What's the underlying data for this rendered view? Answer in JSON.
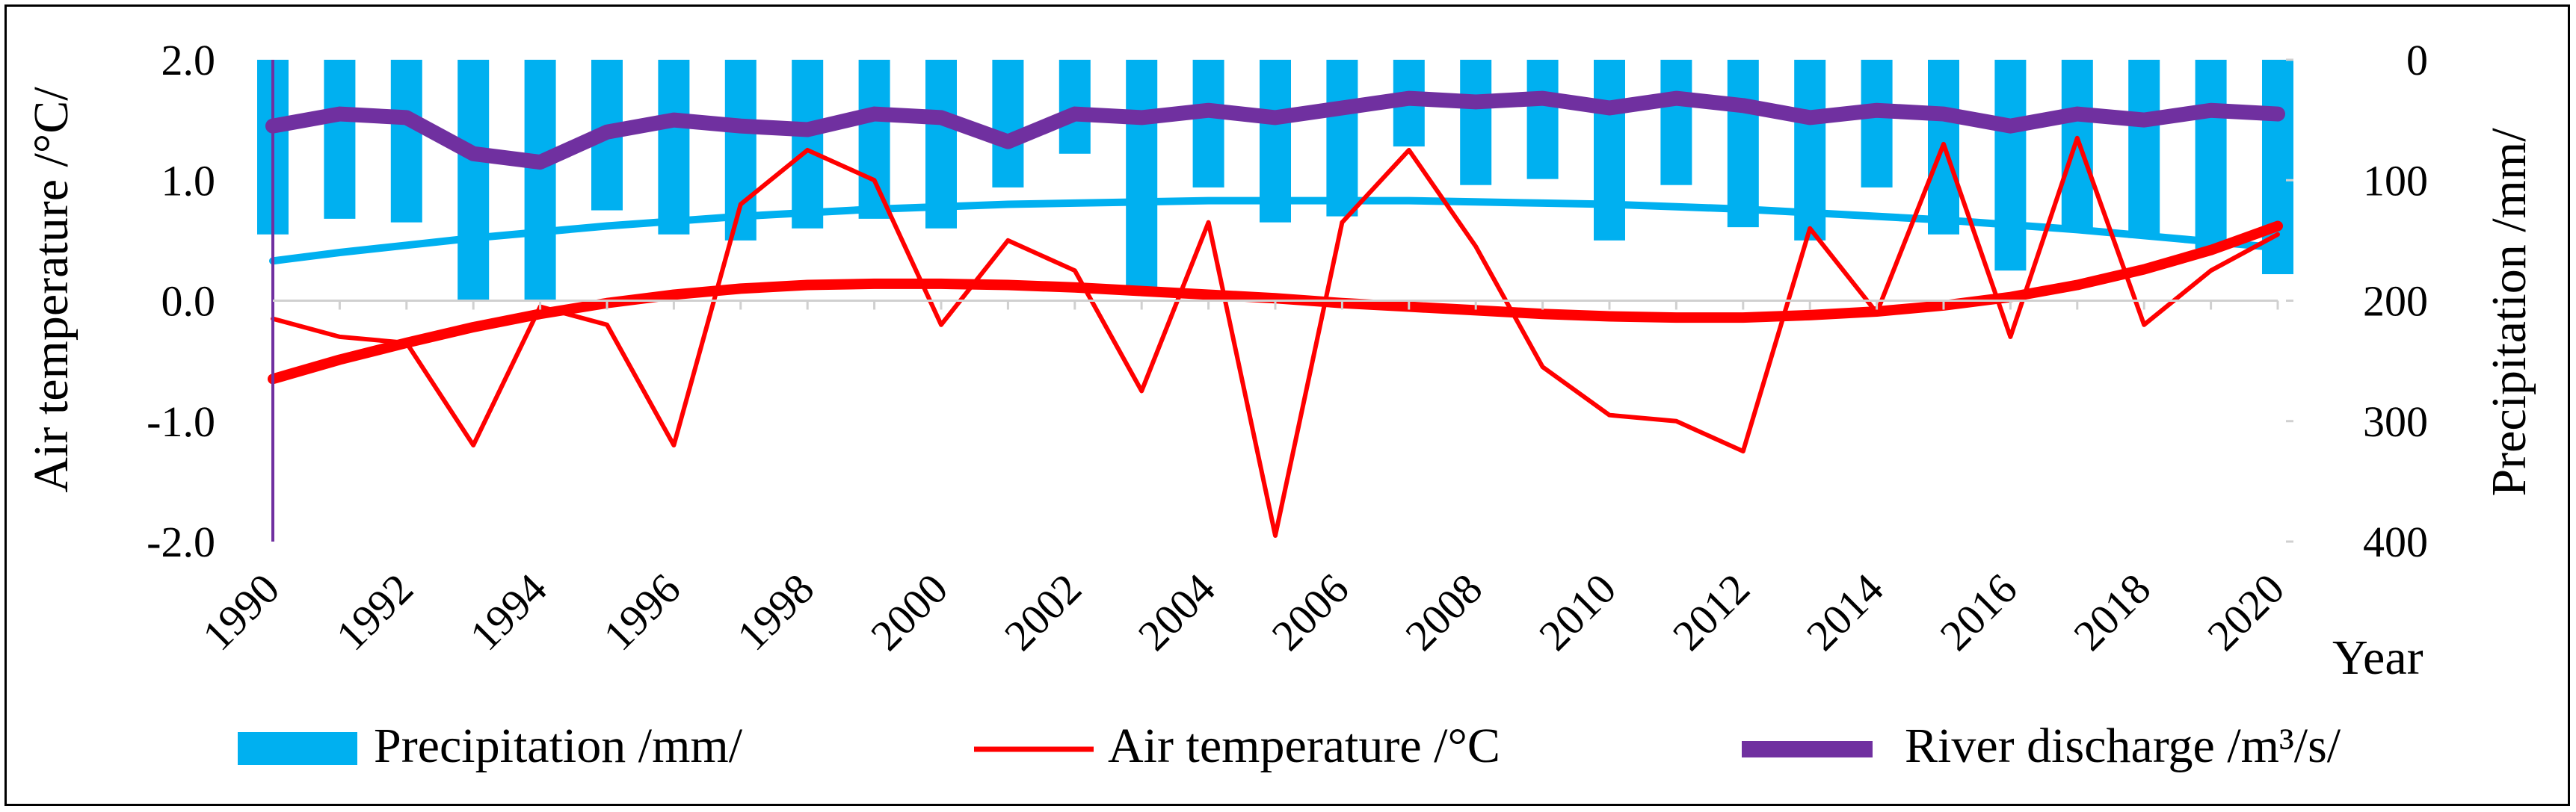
{
  "chart_data": {
    "type": "bar+line",
    "title": "",
    "x_label": "Year",
    "y_left_label": "Air temperature /°C/",
    "y_right_label": "Precipitation /mm/",
    "y_left_ticks": [
      "2.0",
      "1.0",
      "0.0",
      "-1.0",
      "-2.0"
    ],
    "y_left_range": [
      -2.0,
      2.0
    ],
    "y_right_ticks": [
      "0",
      "100",
      "200",
      "300",
      "400"
    ],
    "y_right_range": [
      0,
      400
    ],
    "y_right_inverted": true,
    "x_tick_labels": [
      "1990",
      "1992",
      "1994",
      "1996",
      "1998",
      "2000",
      "2002",
      "2004",
      "2006",
      "2008",
      "2010",
      "2012",
      "2014",
      "2016",
      "2018",
      "2020"
    ],
    "years": [
      1990,
      1991,
      1992,
      1993,
      1994,
      1995,
      1996,
      1997,
      1998,
      1999,
      2000,
      2001,
      2002,
      2003,
      2004,
      2005,
      2006,
      2007,
      2008,
      2009,
      2010,
      2011,
      2012,
      2013,
      2014,
      2015,
      2016,
      2017,
      2018,
      2019,
      2020
    ],
    "series": [
      {
        "name": "Precipitation /mm/",
        "kind": "bar",
        "axis": "right",
        "color": "#00b0f0",
        "values": [
          145,
          132,
          135,
          200,
          200,
          125,
          145,
          150,
          140,
          132,
          140,
          106,
          78,
          190,
          106,
          135,
          130,
          72,
          104,
          99,
          150,
          104,
          139,
          150,
          106,
          145,
          175,
          140,
          148,
          157,
          178
        ]
      },
      {
        "name": "Air temperature /°C",
        "kind": "line",
        "axis": "left",
        "color": "#ff0000",
        "values": [
          -0.15,
          -0.3,
          -0.35,
          -1.2,
          -0.05,
          -0.2,
          -1.2,
          0.8,
          1.25,
          1.0,
          -0.2,
          0.5,
          0.25,
          -0.75,
          0.65,
          -1.95,
          0.65,
          1.25,
          0.45,
          -0.55,
          -0.95,
          -1.0,
          -1.25,
          0.6,
          -0.1,
          1.3,
          -0.3,
          1.35,
          -0.2,
          0.25,
          0.55
        ]
      },
      {
        "name": "River discharge /m³/s/",
        "kind": "line",
        "axis": "left",
        "color": "#7030a0",
        "values": [
          1.45,
          1.55,
          1.52,
          1.22,
          1.15,
          1.4,
          1.5,
          1.45,
          1.42,
          1.55,
          1.52,
          1.32,
          1.55,
          1.52,
          1.58,
          1.52,
          1.6,
          1.68,
          1.65,
          1.68,
          1.6,
          1.68,
          1.62,
          1.52,
          1.58,
          1.55,
          1.45,
          1.55,
          1.5,
          1.58,
          1.55
        ]
      }
    ],
    "trendlines": [
      {
        "series": "Precipitation /mm/",
        "color": "#00b0f0",
        "values": [
          167,
          160,
          154,
          148,
          143,
          138,
          134,
          130,
          127,
          124,
          122,
          120,
          119,
          118,
          117,
          117,
          117,
          117,
          118,
          119,
          120,
          122,
          124,
          127,
          130,
          133,
          137,
          141,
          146,
          151,
          156
        ]
      },
      {
        "series": "Air temperature /°C",
        "color": "#ff0000",
        "values": [
          -0.65,
          -0.49,
          -0.35,
          -0.22,
          -0.11,
          -0.02,
          0.05,
          0.1,
          0.13,
          0.14,
          0.14,
          0.13,
          0.11,
          0.08,
          0.05,
          0.02,
          -0.02,
          -0.05,
          -0.08,
          -0.11,
          -0.13,
          -0.14,
          -0.14,
          -0.12,
          -0.09,
          -0.04,
          0.03,
          0.13,
          0.26,
          0.42,
          0.62
        ]
      }
    ],
    "grid": false,
    "legend_position": "bottom"
  },
  "legend": {
    "items": [
      {
        "label": "Precipitation /mm/",
        "color": "#00b0f0",
        "kind": "bar"
      },
      {
        "label": "Air temperature /°C",
        "color": "#ff0000",
        "kind": "line"
      },
      {
        "label": "River discharge /m³/s/",
        "color": "#7030a0",
        "kind": "line"
      }
    ]
  }
}
